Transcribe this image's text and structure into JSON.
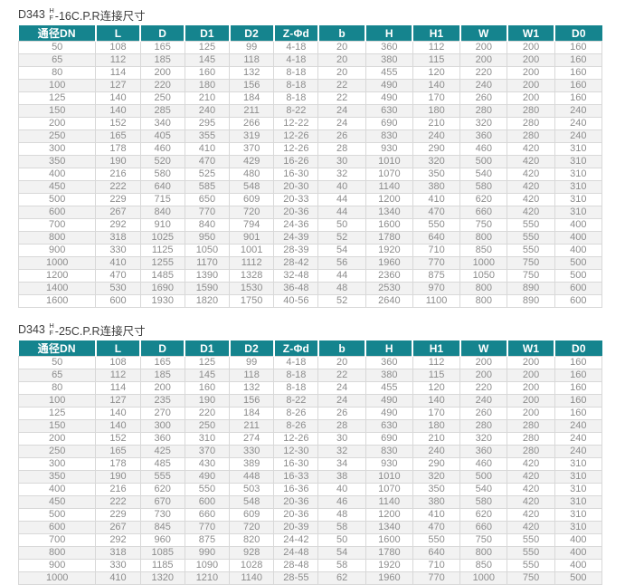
{
  "theme": {
    "accent_color": "#15848e",
    "stripe_color": "#f2f2f2",
    "body_text_color": "#8c8c8c"
  },
  "tables": [
    {
      "title_prefix": "D343",
      "title_fraction_top": "H",
      "title_fraction_bottom": "F",
      "title_suffix": "-16C.P.R连接尺寸",
      "columns": [
        "通径DN",
        "L",
        "D",
        "D1",
        "D2",
        "Z-Φd",
        "b",
        "H",
        "H1",
        "W",
        "W1",
        "D0"
      ],
      "rows": [
        [
          "50",
          "108",
          "165",
          "125",
          "99",
          "4-18",
          "20",
          "360",
          "112",
          "200",
          "200",
          "160"
        ],
        [
          "65",
          "112",
          "185",
          "145",
          "118",
          "4-18",
          "20",
          "380",
          "115",
          "200",
          "200",
          "160"
        ],
        [
          "80",
          "114",
          "200",
          "160",
          "132",
          "8-18",
          "20",
          "455",
          "120",
          "220",
          "200",
          "160"
        ],
        [
          "100",
          "127",
          "220",
          "180",
          "156",
          "8-18",
          "22",
          "490",
          "140",
          "240",
          "200",
          "160"
        ],
        [
          "125",
          "140",
          "250",
          "210",
          "184",
          "8-18",
          "22",
          "490",
          "170",
          "260",
          "200",
          "160"
        ],
        [
          "150",
          "140",
          "285",
          "240",
          "211",
          "8-22",
          "24",
          "630",
          "180",
          "280",
          "280",
          "240"
        ],
        [
          "200",
          "152",
          "340",
          "295",
          "266",
          "12-22",
          "24",
          "690",
          "210",
          "320",
          "280",
          "240"
        ],
        [
          "250",
          "165",
          "405",
          "355",
          "319",
          "12-26",
          "26",
          "830",
          "240",
          "360",
          "280",
          "240"
        ],
        [
          "300",
          "178",
          "460",
          "410",
          "370",
          "12-26",
          "28",
          "930",
          "290",
          "460",
          "420",
          "310"
        ],
        [
          "350",
          "190",
          "520",
          "470",
          "429",
          "16-26",
          "30",
          "1010",
          "320",
          "500",
          "420",
          "310"
        ],
        [
          "400",
          "216",
          "580",
          "525",
          "480",
          "16-30",
          "32",
          "1070",
          "350",
          "540",
          "420",
          "310"
        ],
        [
          "450",
          "222",
          "640",
          "585",
          "548",
          "20-30",
          "40",
          "1140",
          "380",
          "580",
          "420",
          "310"
        ],
        [
          "500",
          "229",
          "715",
          "650",
          "609",
          "20-33",
          "44",
          "1200",
          "410",
          "620",
          "420",
          "310"
        ],
        [
          "600",
          "267",
          "840",
          "770",
          "720",
          "20-36",
          "44",
          "1340",
          "470",
          "660",
          "420",
          "310"
        ],
        [
          "700",
          "292",
          "910",
          "840",
          "794",
          "24-36",
          "50",
          "1600",
          "550",
          "750",
          "550",
          "400"
        ],
        [
          "800",
          "318",
          "1025",
          "950",
          "901",
          "24-39",
          "52",
          "1780",
          "640",
          "800",
          "550",
          "400"
        ],
        [
          "900",
          "330",
          "1125",
          "1050",
          "1001",
          "28-39",
          "54",
          "1920",
          "710",
          "850",
          "550",
          "400"
        ],
        [
          "1000",
          "410",
          "1255",
          "1170",
          "1112",
          "28-42",
          "56",
          "1960",
          "770",
          "1000",
          "750",
          "500"
        ],
        [
          "1200",
          "470",
          "1485",
          "1390",
          "1328",
          "32-48",
          "44",
          "2360",
          "875",
          "1050",
          "750",
          "500"
        ],
        [
          "1400",
          "530",
          "1690",
          "1590",
          "1530",
          "36-48",
          "48",
          "2530",
          "970",
          "800",
          "890",
          "600"
        ],
        [
          "1600",
          "600",
          "1930",
          "1820",
          "1750",
          "40-56",
          "52",
          "2640",
          "1100",
          "800",
          "890",
          "600"
        ]
      ]
    },
    {
      "title_prefix": "D343",
      "title_fraction_top": "H",
      "title_fraction_bottom": "F",
      "title_suffix": "-25C.P.R连接尺寸",
      "columns": [
        "通径DN",
        "L",
        "D",
        "D1",
        "D2",
        "Z-Φd",
        "b",
        "H",
        "H1",
        "W",
        "W1",
        "D0"
      ],
      "rows": [
        [
          "50",
          "108",
          "165",
          "125",
          "99",
          "4-18",
          "20",
          "360",
          "112",
          "200",
          "200",
          "160"
        ],
        [
          "65",
          "112",
          "185",
          "145",
          "118",
          "8-18",
          "22",
          "380",
          "115",
          "200",
          "200",
          "160"
        ],
        [
          "80",
          "114",
          "200",
          "160",
          "132",
          "8-18",
          "24",
          "455",
          "120",
          "220",
          "200",
          "160"
        ],
        [
          "100",
          "127",
          "235",
          "190",
          "156",
          "8-22",
          "24",
          "490",
          "140",
          "240",
          "200",
          "160"
        ],
        [
          "125",
          "140",
          "270",
          "220",
          "184",
          "8-26",
          "26",
          "490",
          "170",
          "260",
          "200",
          "160"
        ],
        [
          "150",
          "140",
          "300",
          "250",
          "211",
          "8-26",
          "28",
          "630",
          "180",
          "280",
          "280",
          "240"
        ],
        [
          "200",
          "152",
          "360",
          "310",
          "274",
          "12-26",
          "30",
          "690",
          "210",
          "320",
          "280",
          "240"
        ],
        [
          "250",
          "165",
          "425",
          "370",
          "330",
          "12-30",
          "32",
          "830",
          "240",
          "360",
          "280",
          "240"
        ],
        [
          "300",
          "178",
          "485",
          "430",
          "389",
          "16-30",
          "34",
          "930",
          "290",
          "460",
          "420",
          "310"
        ],
        [
          "350",
          "190",
          "555",
          "490",
          "448",
          "16-33",
          "38",
          "1010",
          "320",
          "500",
          "420",
          "310"
        ],
        [
          "400",
          "216",
          "620",
          "550",
          "503",
          "16-36",
          "40",
          "1070",
          "350",
          "540",
          "420",
          "310"
        ],
        [
          "450",
          "222",
          "670",
          "600",
          "548",
          "20-36",
          "46",
          "1140",
          "380",
          "580",
          "420",
          "310"
        ],
        [
          "500",
          "229",
          "730",
          "660",
          "609",
          "20-36",
          "48",
          "1200",
          "410",
          "620",
          "420",
          "310"
        ],
        [
          "600",
          "267",
          "845",
          "770",
          "720",
          "20-39",
          "58",
          "1340",
          "470",
          "660",
          "420",
          "310"
        ],
        [
          "700",
          "292",
          "960",
          "875",
          "820",
          "24-42",
          "50",
          "1600",
          "550",
          "750",
          "550",
          "400"
        ],
        [
          "800",
          "318",
          "1085",
          "990",
          "928",
          "24-48",
          "54",
          "1780",
          "640",
          "800",
          "550",
          "400"
        ],
        [
          "900",
          "330",
          "1185",
          "1090",
          "1028",
          "28-48",
          "58",
          "1920",
          "710",
          "850",
          "550",
          "400"
        ],
        [
          "1000",
          "410",
          "1320",
          "1210",
          "1140",
          "28-55",
          "62",
          "1960",
          "770",
          "1000",
          "750",
          "500"
        ]
      ]
    }
  ]
}
